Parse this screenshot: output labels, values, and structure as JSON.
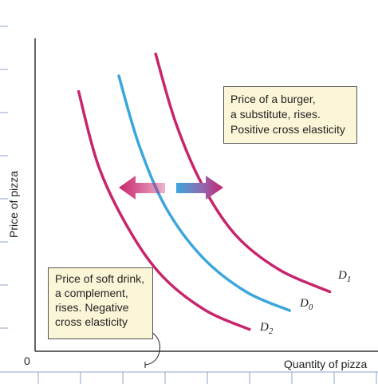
{
  "chart_data": {
    "type": "line",
    "title": "",
    "xlabel": "Quantity of pizza",
    "ylabel": "Price of pizza",
    "origin_label": "0",
    "grid": false,
    "xlim": [
      0,
      10
    ],
    "ylim": [
      0,
      10
    ],
    "series": [
      {
        "name": "D1",
        "label_main": "D",
        "label_sub": "1",
        "color": "#c8246c",
        "points": [
          [
            3.6,
            9.5
          ],
          [
            4.2,
            7.3
          ],
          [
            5.0,
            5.3
          ],
          [
            6.0,
            3.7
          ],
          [
            7.3,
            2.6
          ],
          [
            8.8,
            1.9
          ]
        ]
      },
      {
        "name": "D0",
        "label_main": "D",
        "label_sub": "0",
        "color": "#3aa6dc",
        "points": [
          [
            2.5,
            8.8
          ],
          [
            3.1,
            6.6
          ],
          [
            3.9,
            4.6
          ],
          [
            5.0,
            3.0
          ],
          [
            6.3,
            1.9
          ],
          [
            7.6,
            1.3
          ]
        ]
      },
      {
        "name": "D2",
        "label_main": "D",
        "label_sub": "2",
        "color": "#c8246c",
        "points": [
          [
            1.3,
            8.3
          ],
          [
            1.9,
            5.9
          ],
          [
            2.8,
            3.9
          ],
          [
            3.8,
            2.4
          ],
          [
            5.1,
            1.3
          ],
          [
            6.4,
            0.7
          ]
        ]
      }
    ],
    "shift_arrows": [
      {
        "direction": "left",
        "meaning": "decrease in demand"
      },
      {
        "direction": "right",
        "meaning": "increase in demand"
      }
    ],
    "annotations": [
      {
        "id": "substitute",
        "lines": [
          "Price of a burger,",
          "a substitute, rises.",
          "Positive cross elasticity"
        ]
      },
      {
        "id": "complement",
        "lines": [
          "Price of soft drink,",
          "a complement,",
          "rises. Negative",
          "cross elasticity"
        ]
      }
    ],
    "colors": {
      "background": "#ffffff",
      "note_fill": "#fcf6d8",
      "axis": "#333333",
      "tick": "#8fa6c8"
    }
  }
}
